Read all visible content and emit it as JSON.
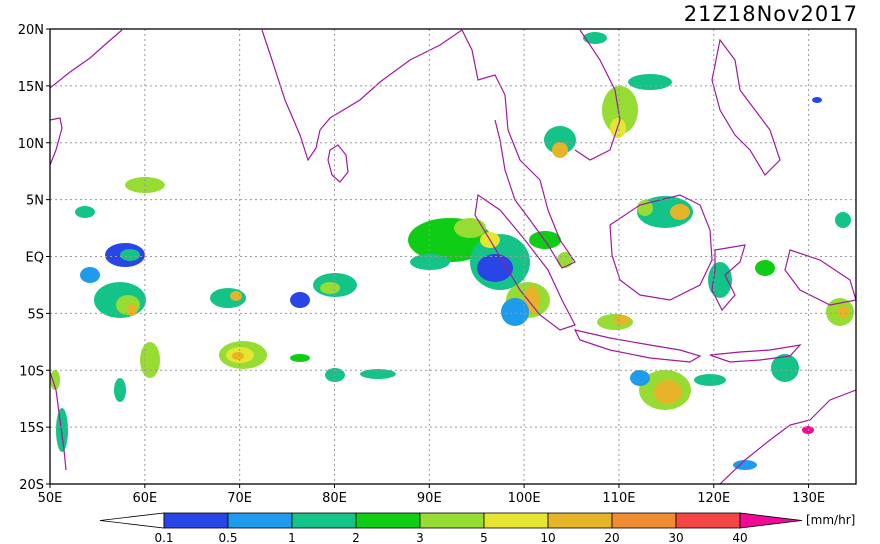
{
  "title": "21Z18Nov2017",
  "axes": {
    "lon": {
      "min": 50,
      "max": 135,
      "ticks": [
        {
          "value": 50,
          "label": "50E"
        },
        {
          "value": 60,
          "label": "60E"
        },
        {
          "value": 70,
          "label": "70E"
        },
        {
          "value": 80,
          "label": "80E"
        },
        {
          "value": 90,
          "label": "90E"
        },
        {
          "value": 100,
          "label": "100E"
        },
        {
          "value": 110,
          "label": "110E"
        },
        {
          "value": 120,
          "label": "120E"
        },
        {
          "value": 130,
          "label": "130E"
        }
      ]
    },
    "lat": {
      "min": -20,
      "max": 20,
      "ticks": [
        {
          "value": 20,
          "label": "20N"
        },
        {
          "value": 15,
          "label": "15N"
        },
        {
          "value": 10,
          "label": "10N"
        },
        {
          "value": 5,
          "label": "5N"
        },
        {
          "value": 0,
          "label": "EQ"
        },
        {
          "value": -5,
          "label": "5S"
        },
        {
          "value": -10,
          "label": "10S"
        },
        {
          "value": -15,
          "label": "15S"
        },
        {
          "value": -20,
          "label": "20S"
        }
      ]
    },
    "grid": true
  },
  "colorbar": {
    "unit": "[mm/hr]",
    "labels": [
      "0.1",
      "0.5",
      "1",
      "2",
      "3",
      "5",
      "10",
      "20",
      "30",
      "40"
    ],
    "colors": [
      "#ffffff",
      "#2846e6",
      "#1e9bea",
      "#14c387",
      "#0fcd14",
      "#96dc32",
      "#e6e632",
      "#e6b428",
      "#f08c32",
      "#f54646",
      "#f00a96"
    ]
  },
  "map_colors": {
    "coastline": "#a01aa0",
    "grid": "#9a9a9a",
    "frame": "#000000"
  }
}
